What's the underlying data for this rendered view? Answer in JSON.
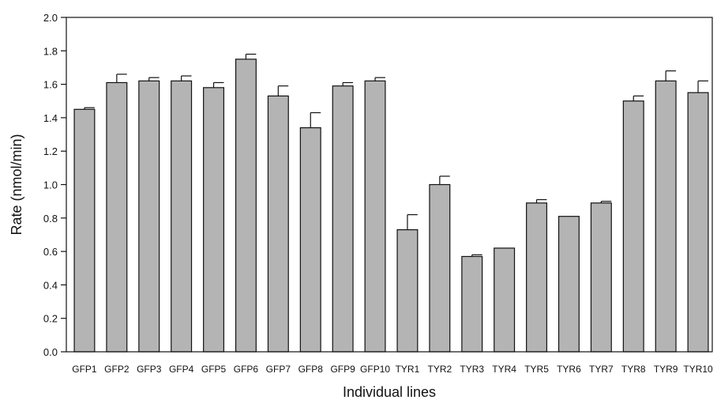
{
  "chart_data": {
    "type": "bar",
    "title": "",
    "xlabel": "Individual lines",
    "ylabel": "Rate (nmol/min)",
    "ylim": [
      0,
      2.0
    ],
    "yticks": [
      "0.0",
      "0.2",
      "0.4",
      "0.6",
      "0.8",
      "1.0",
      "1.2",
      "1.4",
      "1.6",
      "1.8",
      "2.0"
    ],
    "categories": [
      "GFP1",
      "GFP2",
      "GFP3",
      "GFP4",
      "GFP5",
      "GFP6",
      "GFP7",
      "GFP8",
      "GFP9",
      "GFP10",
      "TYR1",
      "TYR2",
      "TYR3",
      "TYR4",
      "TYR5",
      "TYR6",
      "TYR7",
      "TYR8",
      "TYR9",
      "TYR10"
    ],
    "values": [
      1.45,
      1.61,
      1.62,
      1.62,
      1.58,
      1.75,
      1.53,
      1.34,
      1.59,
      1.62,
      0.73,
      1.0,
      0.57,
      0.62,
      0.89,
      0.81,
      0.89,
      1.5,
      1.62,
      1.55
    ],
    "errors": [
      0.01,
      0.05,
      0.02,
      0.03,
      0.03,
      0.03,
      0.06,
      0.09,
      0.02,
      0.02,
      0.09,
      0.05,
      0.01,
      0.0,
      0.02,
      0.0,
      0.01,
      0.03,
      0.06,
      0.07
    ],
    "bar_color": "#b4b4b4",
    "grid": false,
    "legend": "none"
  }
}
